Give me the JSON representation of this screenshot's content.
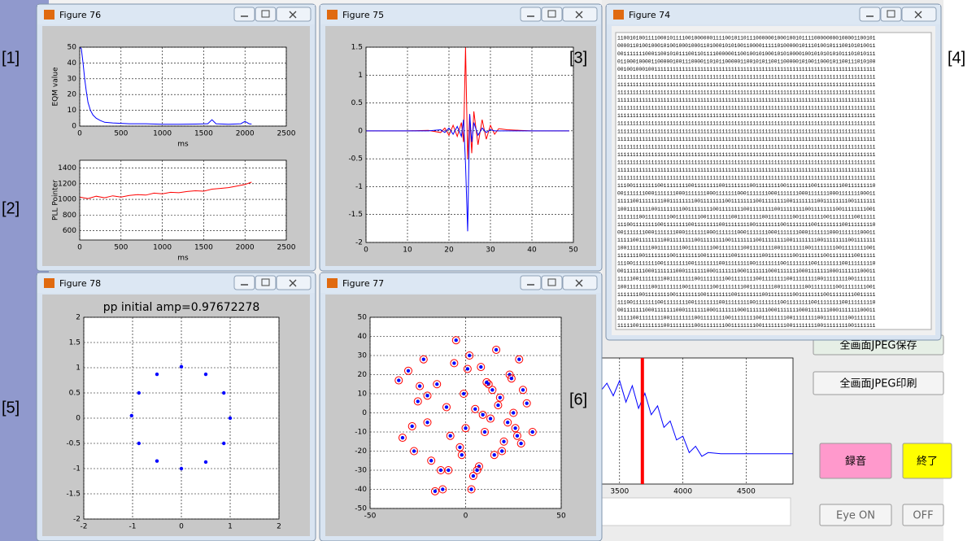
{
  "annotations": [
    "[1]",
    "[2]",
    "[3]",
    "[4]",
    "[5]",
    "[6]"
  ],
  "app": {
    "buttons": [
      "全画面JPEG保存",
      "全画面JPEG印刷",
      "録音",
      "終了",
      "Eye ON",
      "OFF"
    ],
    "spectrum": {
      "type": "line",
      "xlim": [
        3360,
        4870
      ],
      "ylim": [
        0,
        1
      ],
      "xticks": [
        3500,
        4000,
        4500
      ],
      "grid": true,
      "x": [
        3360,
        3400,
        3450,
        3500,
        3550,
        3600,
        3650,
        3700,
        3750,
        3800,
        3850,
        3900,
        3950,
        4000,
        4050,
        4100,
        4150,
        4200,
        4300,
        4400,
        4500,
        4600,
        4700,
        4800,
        4870
      ],
      "series": [
        {
          "color": "#0000ff",
          "values": [
            0.75,
            0.8,
            0.7,
            0.82,
            0.65,
            0.78,
            0.6,
            0.72,
            0.55,
            0.62,
            0.45,
            0.5,
            0.35,
            0.38,
            0.25,
            0.3,
            0.22,
            0.25,
            0.24,
            0.24,
            0.24,
            0.24,
            0.24,
            0.24,
            0.24
          ]
        }
      ],
      "marker": 3680,
      "marker_color": "#ff0000"
    }
  },
  "windows": [
    {
      "title": "Figure 76",
      "charts": [
        {
          "type": "line",
          "xlim": [
            0,
            2500
          ],
          "ylim": [
            0,
            50
          ],
          "xticks": [
            0,
            500,
            1000,
            1500,
            2000,
            2500
          ],
          "yticks": [
            0,
            10,
            20,
            30,
            40,
            50
          ],
          "grid": true,
          "xlabel": "ms",
          "ylabel": "EQM value",
          "x": [
            0,
            20,
            40,
            60,
            80,
            100,
            130,
            160,
            200,
            250,
            300,
            400,
            600,
            800,
            1000,
            1200,
            1400,
            1550,
            1600,
            1650,
            1800,
            1950,
            2000,
            2050,
            2080
          ],
          "series": [
            {
              "color": "#0000ff",
              "values": [
                50,
                49,
                40,
                30,
                22,
                15,
                10,
                7,
                5,
                3.5,
                2.5,
                2,
                1.5,
                1.5,
                1.2,
                1.2,
                1.3,
                1.5,
                4,
                1.5,
                1.2,
                1.5,
                3,
                1.5,
                1.3
              ]
            }
          ]
        },
        {
          "type": "line",
          "xlim": [
            0,
            2500
          ],
          "ylim": [
            480,
            1500
          ],
          "xticks": [
            0,
            500,
            1000,
            1500,
            2000,
            2500
          ],
          "yticks": [
            600,
            800,
            1000,
            1200,
            1400
          ],
          "grid": true,
          "xlabel": "ms",
          "ylabel": "PLL Pointer",
          "x": [
            0,
            100,
            200,
            300,
            400,
            500,
            600,
            700,
            800,
            900,
            1000,
            1100,
            1200,
            1300,
            1400,
            1500,
            1600,
            1700,
            1800,
            1900,
            2000,
            2080
          ],
          "series": [
            {
              "color": "#ff0000",
              "values": [
                1030,
                1010,
                1040,
                1020,
                1045,
                1030,
                1050,
                1060,
                1055,
                1080,
                1070,
                1090,
                1085,
                1100,
                1110,
                1105,
                1130,
                1140,
                1150,
                1170,
                1190,
                1220
              ]
            }
          ]
        }
      ]
    },
    {
      "title": "Figure 75",
      "charts": [
        {
          "type": "line",
          "xlim": [
            0,
            50
          ],
          "ylim": [
            -2,
            1.5
          ],
          "xticks": [
            0,
            10,
            20,
            30,
            40,
            50
          ],
          "yticks": [
            -2,
            -1.5,
            -1,
            -0.5,
            0,
            0.5,
            1,
            1.5
          ],
          "grid": true,
          "x": [
            0,
            5,
            10,
            15,
            18,
            19,
            20,
            21,
            22,
            23,
            23.5,
            24,
            24.5,
            25,
            25.5,
            26,
            27,
            28,
            29,
            30,
            31,
            32,
            34,
            37,
            40,
            45,
            49
          ],
          "series": [
            {
              "color": "#ff0000",
              "values": [
                0,
                0,
                0,
                0.01,
                -0.03,
                0.05,
                -0.08,
                0.1,
                -0.1,
                0.15,
                -0.2,
                1.5,
                -0.5,
                0.3,
                -0.4,
                0.35,
                -0.25,
                0.2,
                -0.15,
                0.1,
                -0.06,
                0.04,
                0.02,
                0.01,
                0,
                0,
                0
              ]
            },
            {
              "color": "#0000ff",
              "values": [
                0,
                0,
                0,
                0,
                0.02,
                -0.03,
                0.05,
                -0.06,
                0.08,
                -0.1,
                0.2,
                -0.6,
                -1.8,
                0.3,
                -0.2,
                0.15,
                -0.08,
                0.05,
                -0.03,
                0.02,
                0,
                0,
                0,
                0,
                0,
                0,
                0
              ]
            }
          ]
        }
      ]
    },
    {
      "title": "Figure 74",
      "text": [
        "110010100111100010111100100000011110010110111000000100010010111100000000100001100101",
        "000011010010001010010001000110100010101001100001111101000001011101001011100101010011",
        "001111111000110010101110011011110000001100100101000101010000100101010101011101010111",
        "011000100001100000100111000011010110000011001010110011000001010011000101100111010100",
        "001001000100111111111111111111111111111111111111111111111111111111111111111111111111",
        "111111111111111111111111111111111111111111111111111111111111111111111111111111111111",
        "111111111111111111111111111111111111111111111111111111111111111111111111111111111111",
        "111111111111111111111111111111111111111111111111111111111111111111111111111111111111",
        "111111111111111111111111111111111111111111111111111111111111111111111111111111111111",
        "111111111111111111111111111111111111111111111111111111111111111111111111111111111111",
        "111111111111111111111111111111111111111111111111111111111111111111111111111111111111",
        "111111111111111111111111111111111111111111111111111111111111111111111111111111111111",
        "111111111111111111111111111111111111111111111111111111111111111111111111111111111111",
        "111111111111111111111111111111111111111111111111111111111111111111111111111111111111",
        "111111111111111111111111111111111111111111111111111111111111111111111111111111111111",
        "111111111111111111111111111111111111111111111111111111111111111111111111111111111111",
        "111111111111111111111111111111111111111111111111111111111111111111111111111111111111",
        "111111111111111111111111111111111111111111111111111111111111111111111111111111111111",
        "111111111111111111111111111111111111111111111111111111111111111111111111111111111111",
        "111001111111100111111110011111111001111111100111111110011111111001111111100111111110",
        "001111111000111111100011111110001111111000111111100011111110001111111000111111100011",
        "111110011111111001111111100111111110011111111001111111100111111110011111111001111111",
        "100111111110011111111001111111100111111110011111111001111111100111111110011111111001",
        "111111100111111110011111111001111111100111111110011111111001111111100111111110011111",
        "111001111111100111111110011111111001111111100111111110011111111001111111100111111110",
        "001111111000111111100011111110001111111000111111100011111110001111111000111111100011",
        "111110011111111001111111100111111110011111111001111111100111111110011111111001111111",
        "100111111110011111111001111111100111111110011111111001111111100111111110011111111001",
        "111111100111111110011111111001111111100111111110011111111001111111100111111110011111",
        "111001111111100111111110011111111001111111100111111110011111111001111111100111111110",
        "001111111000111111100011111110001111111000111111100011111110001111111000111111100011",
        "111110011111111001111111100111111110011111111001111111100111111110011111111001111111",
        "100111111110011111111001111111100111111110011111111001111111100111111110011111111001",
        "111111100111111110011111111001111111100111111110011111111001111111100111111110011111",
        "111001111111100111111110011111111001111111100111111110011111111001111111100111111110",
        "001111111000111111100011111110001111111000111111100011111110001111111000111111100011",
        "111110011111111001111111100111111110011111111001111111100111111110011111111001111111",
        "111110011111111001111111100111111110011111111001111111100111111110011111111001111111"
      ]
    },
    {
      "title": "Figure 78",
      "charts": [
        {
          "type": "scatter",
          "title": "pp initial amp=0.97672278",
          "xlim": [
            -2,
            2
          ],
          "ylim": [
            -2,
            2
          ],
          "xticks": [
            -2,
            -1,
            0,
            1,
            2
          ],
          "yticks": [
            -2,
            -1.5,
            -1,
            -0.5,
            0,
            0.5,
            1,
            1.5,
            2
          ],
          "grid": true,
          "series": [
            {
              "color": "#0000ff",
              "x": [
                1,
                0.87,
                0.5,
                0,
                -0.5,
                -0.87,
                -1.02,
                -0.87,
                -0.5,
                0,
                0.5,
                0.87
              ],
              "y": [
                0,
                0.5,
                0.87,
                1.02,
                0.87,
                0.5,
                0.05,
                -0.5,
                -0.85,
                -1,
                -0.87,
                -0.5
              ]
            }
          ]
        }
      ]
    },
    {
      "title": "Figure 77",
      "charts": [
        {
          "type": "scatter",
          "xlim": [
            -50,
            50
          ],
          "ylim": [
            -50,
            50
          ],
          "xticks": [
            -50,
            0,
            50
          ],
          "yticks": [
            -50,
            -40,
            -30,
            -20,
            -10,
            0,
            10,
            20,
            30,
            40,
            50
          ],
          "grid": true,
          "series": [
            {
              "color": "#0000ff",
              "ring_color": "#ff0000",
              "x": [
                -35,
                -33,
                -30,
                -27,
                -25,
                -22,
                -20,
                -18,
                -15,
                -13,
                -10,
                -8,
                -5,
                -3,
                -1,
                0,
                2,
                3,
                5,
                7,
                8,
                10,
                12,
                13,
                15,
                16,
                18,
                20,
                22,
                23,
                25,
                27,
                28,
                30,
                32,
                35,
                -28,
                -12,
                -6,
                4,
                9,
                14,
                19,
                24,
                29,
                -20,
                -2,
                6,
                11,
                17,
                26,
                -24,
                -9,
                1,
                -16
              ],
              "y": [
                17,
                -13,
                22,
                -20,
                6,
                28,
                -5,
                -25,
                15,
                -30,
                3,
                -12,
                38,
                -18,
                10,
                -8,
                30,
                -40,
                2,
                -28,
                24,
                -10,
                15,
                -3,
                -22,
                33,
                8,
                -15,
                -5,
                20,
                0,
                -12,
                28,
                12,
                5,
                -10,
                -7,
                -40,
                26,
                -33,
                -1,
                12,
                -20,
                18,
                -16,
                9,
                -22,
                -30,
                16,
                4,
                -8,
                14,
                -30,
                23,
                -41
              ]
            }
          ]
        }
      ]
    }
  ]
}
